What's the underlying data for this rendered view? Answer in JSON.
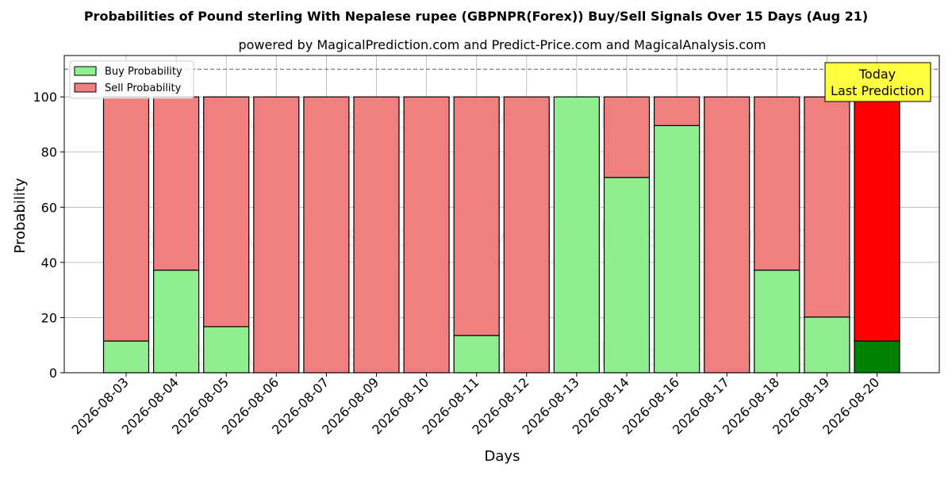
{
  "chart_data": {
    "type": "bar",
    "stacked": true,
    "title": "Probabilities of Pound sterling With Nepalese rupee (GBPNPR(Forex)) Buy/Sell Signals Over 15 Days (Aug 21)",
    "subtitle": "powered by MagicalPrediction.com and Predict-Price.com and MagicalAnalysis.com",
    "xlabel": "Days",
    "ylabel": "Probability",
    "ylim": [
      0,
      115
    ],
    "yticks": [
      0,
      20,
      40,
      60,
      80,
      100
    ],
    "grid": true,
    "legend_position": "top-left",
    "reference_line": 110,
    "categories": [
      "2026-08-03",
      "2026-08-04",
      "2026-08-05",
      "2026-08-06",
      "2026-08-07",
      "2026-08-09",
      "2026-08-10",
      "2026-08-11",
      "2026-08-12",
      "2026-08-13",
      "2026-08-14",
      "2026-08-16",
      "2026-08-17",
      "2026-08-18",
      "2026-08-19",
      "2026-08-20"
    ],
    "series": [
      {
        "name": "Buy Probability",
        "color": "#90ee90",
        "values": [
          11.5,
          37.2,
          16.7,
          0,
          0,
          0,
          0,
          13.5,
          0,
          100,
          70.8,
          89.6,
          0,
          37.2,
          20.2,
          11.5
        ]
      },
      {
        "name": "Sell Probability",
        "color": "#f08080",
        "values": [
          88.5,
          62.8,
          83.3,
          100,
          100,
          100,
          100,
          86.5,
          100,
          0,
          29.2,
          10.4,
          100,
          62.8,
          79.8,
          88.5
        ]
      }
    ],
    "highlight": {
      "index": 15,
      "buy_color": "#008000",
      "sell_color": "#ff0000"
    },
    "annotation": {
      "line1": "Today",
      "line2": "Last Prediction",
      "color": "#ffff40"
    },
    "watermarks": [
      "MagicalAnalysis.com",
      "MagicalPrediction.com"
    ]
  }
}
